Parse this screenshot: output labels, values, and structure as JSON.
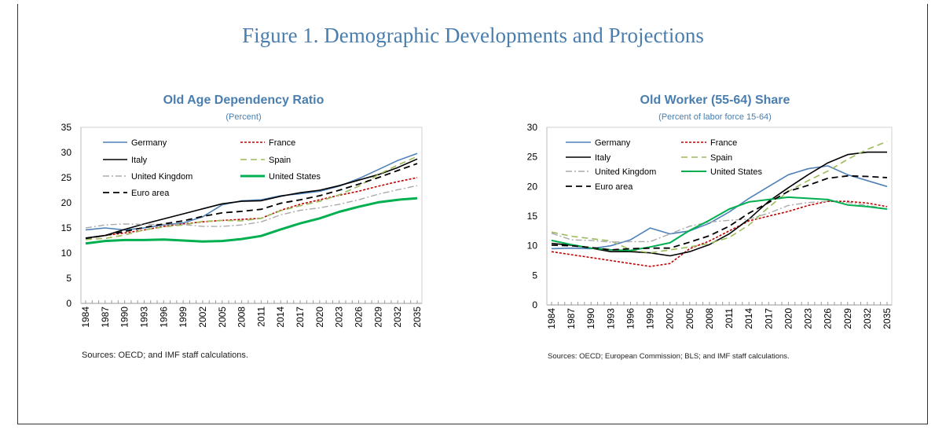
{
  "figure_title": "Figure 1. Demographic Developments and Projections",
  "chart_data": [
    {
      "type": "line",
      "title": "Old Age Dependency Ratio",
      "subtitle": "(Percent)",
      "xlabel": "",
      "ylabel": "",
      "ylim": [
        0,
        35
      ],
      "yticks": [
        0,
        5,
        10,
        15,
        20,
        25,
        30,
        35
      ],
      "x": [
        1984,
        1987,
        1990,
        1993,
        1996,
        1999,
        2002,
        2005,
        2008,
        2011,
        2014,
        2017,
        2020,
        2023,
        2026,
        2029,
        2032,
        2035
      ],
      "legend": "top-left",
      "source": "Sources: OECD; and IMF staff calculations.",
      "series": [
        {
          "name": "Germany",
          "color": "#4f81b9",
          "values": [
            14.6,
            15.0,
            14.6,
            15.0,
            15.6,
            16.0,
            17.2,
            19.6,
            20.4,
            20.6,
            21.4,
            21.8,
            22.3,
            23.3,
            24.8,
            26.6,
            28.4,
            29.8
          ]
        },
        {
          "name": "France",
          "color": "#c00000",
          "values": [
            12.9,
            13.5,
            14.0,
            14.6,
            15.3,
            15.8,
            16.2,
            16.5,
            16.7,
            16.9,
            18.5,
            19.7,
            20.6,
            21.5,
            22.3,
            23.3,
            24.2,
            25.0
          ]
        },
        {
          "name": "Italy",
          "color": "#000000",
          "values": [
            13.0,
            13.5,
            14.7,
            15.8,
            16.8,
            17.8,
            18.8,
            19.8,
            20.3,
            20.4,
            21.3,
            22.0,
            22.5,
            23.4,
            24.5,
            25.6,
            27.0,
            28.7
          ]
        },
        {
          "name": "Spain",
          "color": "#9bbb59",
          "values": [
            12.7,
            12.9,
            13.6,
            14.6,
            15.2,
            15.6,
            16.3,
            16.5,
            16.4,
            16.9,
            18.4,
            19.4,
            20.3,
            21.6,
            23.3,
            25.6,
            27.5,
            29.2
          ]
        },
        {
          "name": "United Kingdom",
          "color": "#aaaaaa",
          "values": [
            15.0,
            15.6,
            15.8,
            15.7,
            15.7,
            15.7,
            15.3,
            15.3,
            15.6,
            16.2,
            17.6,
            18.5,
            19.0,
            19.7,
            20.6,
            21.7,
            22.6,
            23.4
          ]
        },
        {
          "name": "United States",
          "color": "#00b050",
          "values": [
            11.9,
            12.4,
            12.6,
            12.6,
            12.7,
            12.5,
            12.3,
            12.4,
            12.8,
            13.4,
            14.7,
            15.9,
            16.9,
            18.2,
            19.2,
            20.1,
            20.6,
            20.9
          ]
        },
        {
          "name": "Euro area",
          "color": "#000000",
          "values": [
            12.9,
            13.5,
            14.3,
            15.1,
            15.8,
            16.4,
            17.3,
            18.0,
            18.3,
            18.7,
            19.9,
            20.6,
            21.4,
            22.5,
            23.7,
            25.0,
            26.4,
            27.8
          ]
        }
      ]
    },
    {
      "type": "line",
      "title": "Old Worker (55-64) Share",
      "subtitle": "(Percent of labor force 15-64)",
      "xlabel": "",
      "ylabel": "",
      "ylim": [
        0,
        30
      ],
      "yticks": [
        0,
        5,
        10,
        15,
        20,
        25,
        30
      ],
      "x": [
        1984,
        1987,
        1990,
        1993,
        1996,
        1999,
        2002,
        2005,
        2008,
        2011,
        2014,
        2017,
        2020,
        2023,
        2026,
        2029,
        2032,
        2035
      ],
      "legend": "top-left",
      "source": "Sources: OECD; European Commission; BLS; and IMF staff calculations.",
      "series": [
        {
          "name": "Germany",
          "color": "#4f81b9",
          "values": [
            9.5,
            9.6,
            9.5,
            10.0,
            11.0,
            13.0,
            12.0,
            12.5,
            13.8,
            15.7,
            18.0,
            20.0,
            22.0,
            23.0,
            23.5,
            22.0,
            21.0,
            20.0
          ]
        },
        {
          "name": "France",
          "color": "#c00000",
          "values": [
            9.0,
            8.5,
            8.0,
            7.5,
            7.0,
            6.5,
            7.0,
            9.5,
            10.8,
            12.5,
            14.2,
            15.0,
            15.8,
            16.8,
            17.5,
            17.5,
            17.2,
            16.6
          ]
        },
        {
          "name": "Italy",
          "color": "#000000",
          "values": [
            10.4,
            10.1,
            9.6,
            9.0,
            9.0,
            8.8,
            8.3,
            9.0,
            10.2,
            12.0,
            14.5,
            17.5,
            19.8,
            22.0,
            24.0,
            25.4,
            25.8,
            25.8
          ]
        },
        {
          "name": "Spain",
          "color": "#9bbb59",
          "values": [
            12.3,
            11.6,
            11.2,
            10.8,
            9.3,
            8.8,
            9.3,
            9.8,
            10.4,
            11.4,
            13.5,
            16.5,
            19.2,
            21.0,
            22.6,
            24.6,
            26.3,
            27.6
          ]
        },
        {
          "name": "United Kingdom",
          "color": "#aaaaaa",
          "values": [
            12.1,
            11.0,
            10.9,
            10.6,
            10.7,
            10.7,
            12.0,
            13.3,
            14.0,
            14.3,
            14.5,
            15.5,
            16.8,
            17.3,
            17.5,
            17.3,
            16.8,
            16.2
          ]
        },
        {
          "name": "United States",
          "color": "#00b050",
          "values": [
            10.9,
            10.2,
            9.6,
            9.3,
            9.2,
            9.8,
            10.5,
            12.6,
            14.3,
            16.2,
            17.4,
            17.8,
            18.2,
            18.0,
            17.8,
            16.9,
            16.6,
            16.2
          ]
        },
        {
          "name": "Euro area",
          "color": "#000000",
          "values": [
            10.1,
            10.0,
            9.7,
            9.3,
            9.5,
            9.6,
            9.6,
            10.6,
            11.7,
            13.3,
            15.5,
            17.3,
            19.2,
            20.2,
            21.4,
            21.8,
            21.7,
            21.5
          ]
        }
      ]
    }
  ]
}
